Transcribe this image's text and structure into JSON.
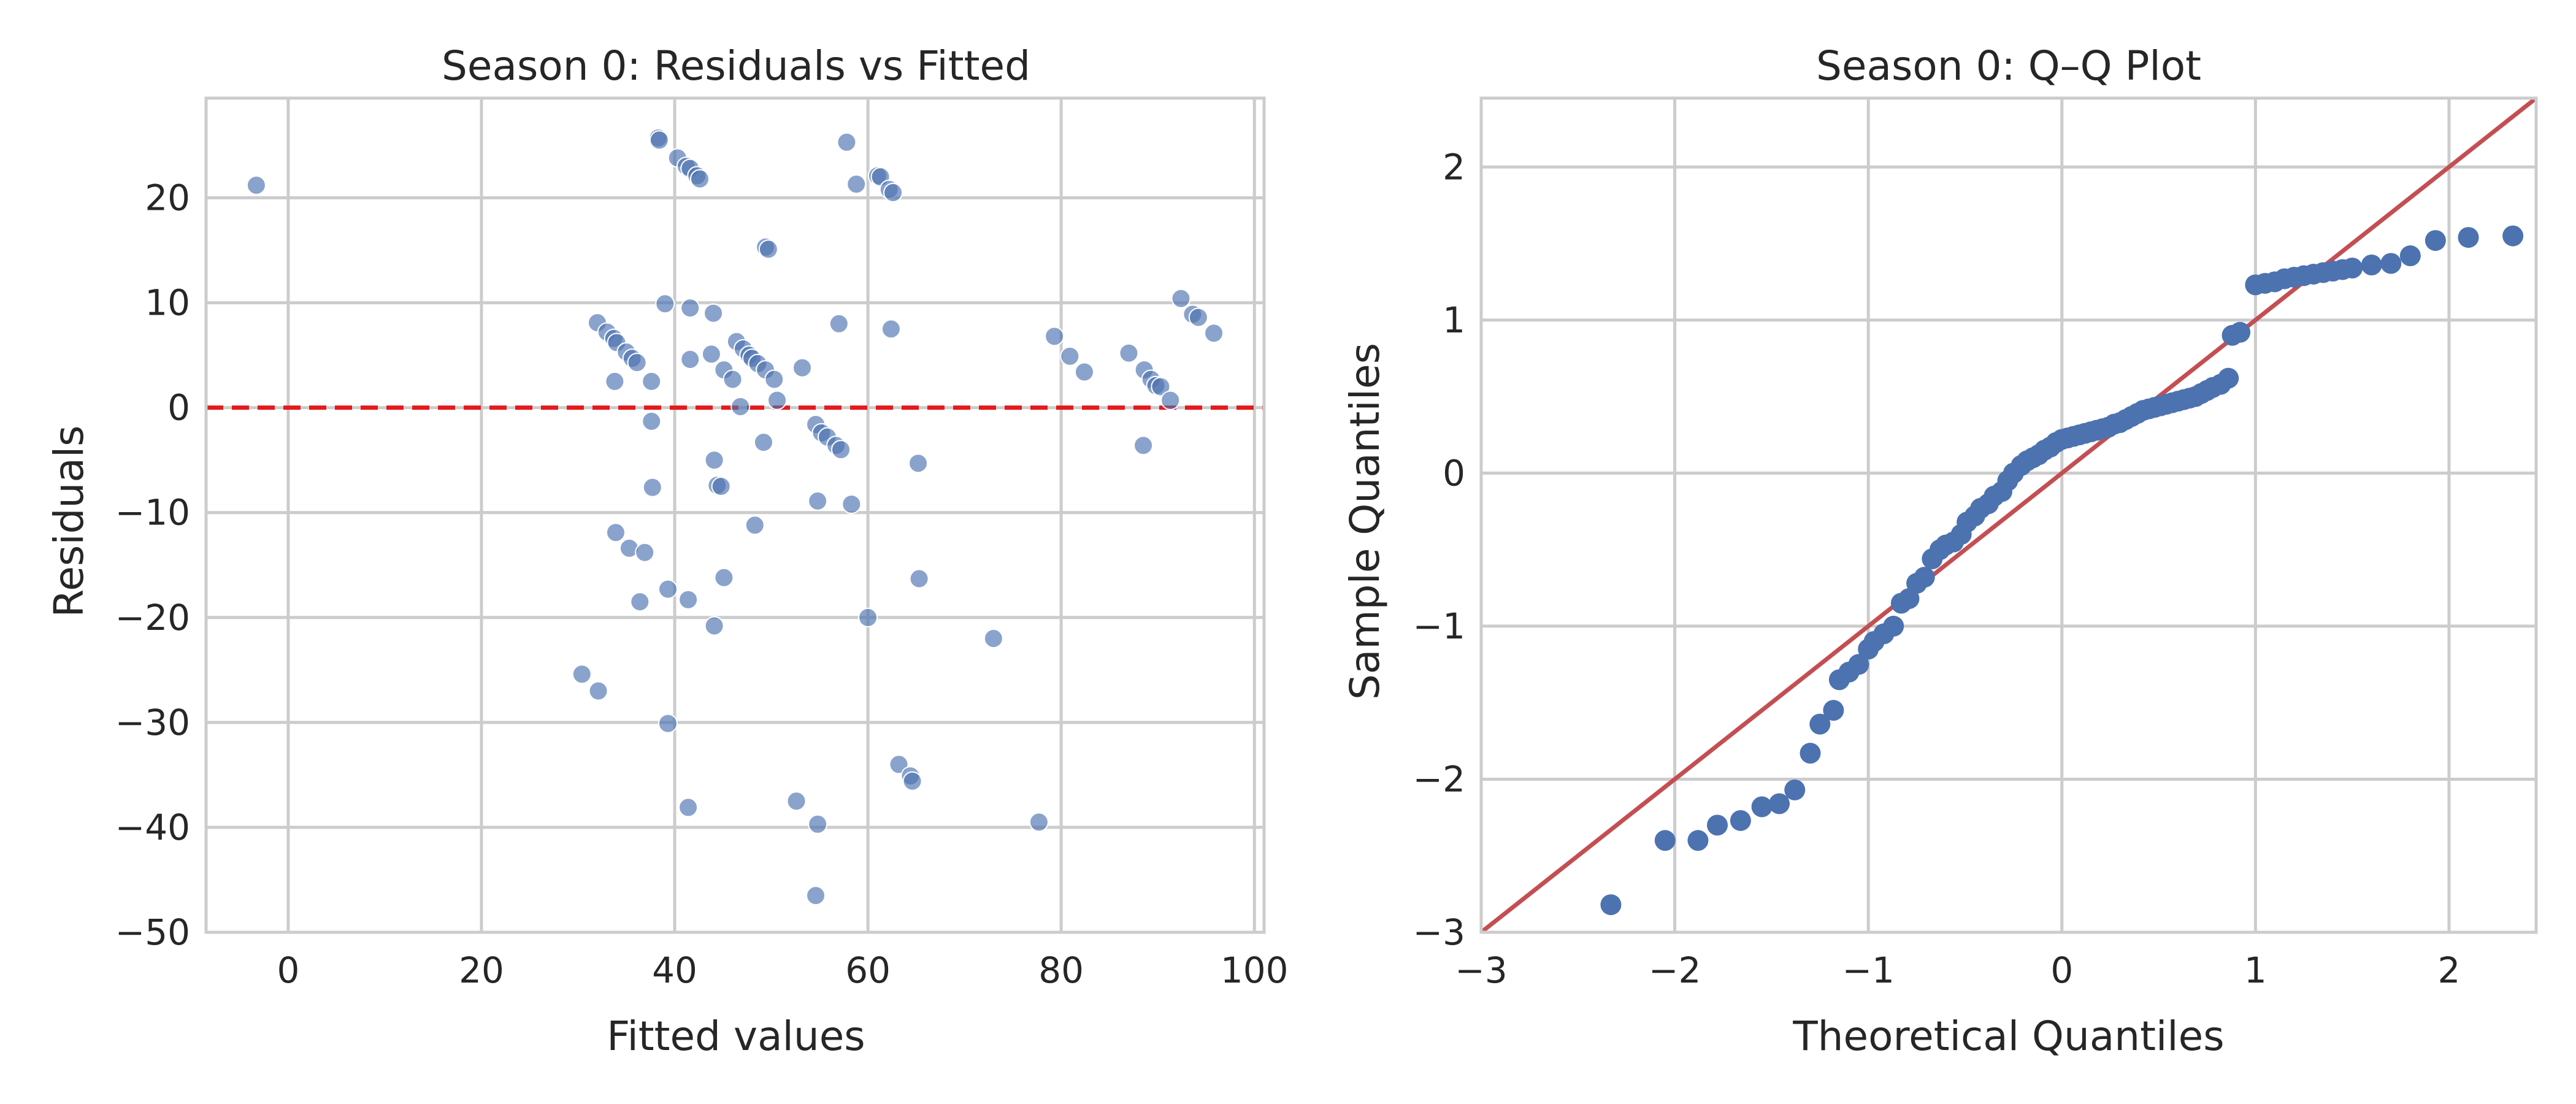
{
  "chart_data": [
    {
      "type": "scatter",
      "title": "Season 0: Residuals vs Fitted",
      "xlabel": "Fitted values",
      "ylabel": "Residuals",
      "xlim": [
        -8.5,
        101
      ],
      "ylim": [
        -50,
        29.5
      ],
      "xticks": [
        0,
        20,
        40,
        60,
        80,
        100
      ],
      "xtick_labels": [
        "0",
        "20",
        "40",
        "60",
        "80",
        "100"
      ],
      "yticks": [
        20,
        10,
        0,
        -10,
        -20,
        -30,
        -40,
        -50
      ],
      "ytick_labels": [
        "20",
        "10",
        "0",
        "−10",
        "−20",
        "−30",
        "−40",
        "−50"
      ],
      "grid": true,
      "point_color": "#4c72b0",
      "reference_line": {
        "y": 0,
        "style": "dashed",
        "color": "#e41a1c"
      },
      "points": [
        [
          -3.3,
          21.2
        ],
        [
          38.3,
          25.7
        ],
        [
          38.4,
          25.5
        ],
        [
          40.3,
          23.8
        ],
        [
          41.2,
          23.0
        ],
        [
          41.6,
          22.8
        ],
        [
          42.3,
          22.1
        ],
        [
          42.6,
          21.8
        ],
        [
          57.8,
          25.3
        ],
        [
          58.8,
          21.3
        ],
        [
          61.0,
          22.1
        ],
        [
          61.3,
          22.0
        ],
        [
          62.2,
          20.8
        ],
        [
          62.6,
          20.5
        ],
        [
          49.4,
          15.3
        ],
        [
          49.7,
          15.1
        ],
        [
          39.0,
          9.9
        ],
        [
          41.6,
          9.5
        ],
        [
          44.0,
          9.0
        ],
        [
          32.0,
          8.1
        ],
        [
          33.0,
          7.2
        ],
        [
          33.7,
          6.6
        ],
        [
          34.0,
          6.2
        ],
        [
          35.0,
          5.3
        ],
        [
          35.6,
          4.7
        ],
        [
          36.1,
          4.3
        ],
        [
          33.8,
          2.5
        ],
        [
          37.6,
          2.5
        ],
        [
          41.6,
          4.6
        ],
        [
          43.8,
          5.1
        ],
        [
          45.1,
          3.6
        ],
        [
          46.0,
          2.7
        ],
        [
          46.4,
          6.3
        ],
        [
          47.1,
          5.6
        ],
        [
          47.7,
          5.0
        ],
        [
          48.0,
          4.7
        ],
        [
          48.6,
          4.2
        ],
        [
          49.4,
          3.6
        ],
        [
          50.3,
          2.7
        ],
        [
          50.6,
          0.7
        ],
        [
          46.8,
          0.1
        ],
        [
          53.2,
          3.8
        ],
        [
          57.0,
          8.0
        ],
        [
          62.4,
          7.5
        ],
        [
          79.3,
          6.8
        ],
        [
          80.9,
          4.9
        ],
        [
          82.4,
          3.4
        ],
        [
          87.0,
          5.2
        ],
        [
          88.6,
          3.6
        ],
        [
          89.3,
          2.7
        ],
        [
          89.8,
          2.1
        ],
        [
          90.3,
          2.0
        ],
        [
          91.3,
          0.7
        ],
        [
          92.4,
          10.4
        ],
        [
          93.6,
          8.9
        ],
        [
          94.2,
          8.6
        ],
        [
          95.8,
          7.1
        ],
        [
          88.5,
          -3.6
        ],
        [
          37.6,
          -1.3
        ],
        [
          44.1,
          -5.0
        ],
        [
          49.2,
          -3.3
        ],
        [
          54.6,
          -1.6
        ],
        [
          55.2,
          -2.4
        ],
        [
          55.8,
          -2.8
        ],
        [
          56.7,
          -3.6
        ],
        [
          57.2,
          -4.0
        ],
        [
          65.2,
          -5.3
        ],
        [
          37.7,
          -7.6
        ],
        [
          44.4,
          -7.4
        ],
        [
          44.8,
          -7.5
        ],
        [
          54.8,
          -8.9
        ],
        [
          58.3,
          -9.2
        ],
        [
          48.3,
          -11.2
        ],
        [
          33.9,
          -11.9
        ],
        [
          35.3,
          -13.4
        ],
        [
          36.9,
          -13.8
        ],
        [
          36.4,
          -18.5
        ],
        [
          39.3,
          -17.3
        ],
        [
          41.4,
          -18.3
        ],
        [
          45.1,
          -16.2
        ],
        [
          65.3,
          -16.3
        ],
        [
          44.1,
          -20.8
        ],
        [
          60.0,
          -20.0
        ],
        [
          73.0,
          -22.0
        ],
        [
          30.4,
          -25.4
        ],
        [
          32.1,
          -27.0
        ],
        [
          39.3,
          -30.1
        ],
        [
          41.4,
          -38.1
        ],
        [
          52.6,
          -37.5
        ],
        [
          54.8,
          -39.7
        ],
        [
          63.2,
          -34.0
        ],
        [
          64.4,
          -35.1
        ],
        [
          64.6,
          -35.6
        ],
        [
          77.7,
          -39.5
        ],
        [
          54.6,
          -46.5
        ]
      ]
    },
    {
      "type": "scatter",
      "title": "Season 0: Q–Q Plot",
      "xlabel": "Theoretical Quantiles",
      "ylabel": "Sample Quantiles",
      "xlim": [
        -3.0,
        2.45
      ],
      "ylim": [
        -3.0,
        2.45
      ],
      "xticks": [
        -3,
        -2,
        -1,
        0,
        1,
        2
      ],
      "xtick_labels": [
        "−3",
        "−2",
        "−1",
        "0",
        "1",
        "2"
      ],
      "yticks": [
        2,
        1,
        0,
        -1,
        -2,
        -3
      ],
      "ytick_labels": [
        "2",
        "1",
        "0",
        "−1",
        "−2",
        "−3"
      ],
      "grid": true,
      "point_color": "#4c72b0",
      "reference_line": {
        "slope": 1,
        "intercept": 0,
        "style": "solid",
        "color": "#c44e52"
      },
      "points": [
        [
          -2.33,
          -2.82
        ],
        [
          -2.05,
          -2.4
        ],
        [
          -1.88,
          -2.4
        ],
        [
          -1.78,
          -2.3
        ],
        [
          -1.66,
          -2.27
        ],
        [
          -1.55,
          -2.18
        ],
        [
          -1.46,
          -2.16
        ],
        [
          -1.38,
          -2.07
        ],
        [
          -1.3,
          -1.83
        ],
        [
          -1.25,
          -1.64
        ],
        [
          -1.18,
          -1.55
        ],
        [
          -1.15,
          -1.35
        ],
        [
          -1.1,
          -1.3
        ],
        [
          -1.05,
          -1.25
        ],
        [
          -1.0,
          -1.15
        ],
        [
          -0.97,
          -1.1
        ],
        [
          -0.92,
          -1.05
        ],
        [
          -0.87,
          -1.0
        ],
        [
          -0.83,
          -0.85
        ],
        [
          -0.79,
          -0.82
        ],
        [
          -0.75,
          -0.72
        ],
        [
          -0.71,
          -0.68
        ],
        [
          -0.67,
          -0.56
        ],
        [
          -0.63,
          -0.5
        ],
        [
          -0.6,
          -0.47
        ],
        [
          -0.56,
          -0.45
        ],
        [
          -0.52,
          -0.4
        ],
        [
          -0.49,
          -0.32
        ],
        [
          -0.45,
          -0.28
        ],
        [
          -0.42,
          -0.23
        ],
        [
          -0.38,
          -0.2
        ],
        [
          -0.35,
          -0.15
        ],
        [
          -0.31,
          -0.12
        ],
        [
          -0.28,
          -0.05
        ],
        [
          -0.25,
          0.0
        ],
        [
          -0.21,
          0.05
        ],
        [
          -0.18,
          0.08
        ],
        [
          -0.15,
          0.1
        ],
        [
          -0.12,
          0.12
        ],
        [
          -0.09,
          0.15
        ],
        [
          -0.06,
          0.17
        ],
        [
          -0.03,
          0.2
        ],
        [
          0.0,
          0.22
        ],
        [
          0.03,
          0.23
        ],
        [
          0.06,
          0.24
        ],
        [
          0.09,
          0.25
        ],
        [
          0.12,
          0.26
        ],
        [
          0.15,
          0.27
        ],
        [
          0.18,
          0.28
        ],
        [
          0.21,
          0.29
        ],
        [
          0.24,
          0.3
        ],
        [
          0.27,
          0.32
        ],
        [
          0.3,
          0.33
        ],
        [
          0.33,
          0.35
        ],
        [
          0.36,
          0.37
        ],
        [
          0.39,
          0.39
        ],
        [
          0.42,
          0.41
        ],
        [
          0.45,
          0.42
        ],
        [
          0.48,
          0.43
        ],
        [
          0.51,
          0.44
        ],
        [
          0.54,
          0.45
        ],
        [
          0.57,
          0.46
        ],
        [
          0.6,
          0.47
        ],
        [
          0.63,
          0.48
        ],
        [
          0.66,
          0.49
        ],
        [
          0.69,
          0.5
        ],
        [
          0.72,
          0.52
        ],
        [
          0.75,
          0.54
        ],
        [
          0.78,
          0.56
        ],
        [
          0.82,
          0.58
        ],
        [
          0.86,
          0.62
        ],
        [
          0.88,
          0.9
        ],
        [
          0.92,
          0.92
        ],
        [
          1.0,
          1.23
        ],
        [
          1.05,
          1.24
        ],
        [
          1.1,
          1.25
        ],
        [
          1.15,
          1.27
        ],
        [
          1.2,
          1.28
        ],
        [
          1.25,
          1.29
        ],
        [
          1.3,
          1.3
        ],
        [
          1.35,
          1.31
        ],
        [
          1.4,
          1.32
        ],
        [
          1.45,
          1.33
        ],
        [
          1.5,
          1.34
        ],
        [
          1.6,
          1.36
        ],
        [
          1.7,
          1.37
        ],
        [
          1.8,
          1.42
        ],
        [
          1.93,
          1.52
        ],
        [
          2.1,
          1.54
        ],
        [
          2.33,
          1.55
        ]
      ]
    }
  ]
}
